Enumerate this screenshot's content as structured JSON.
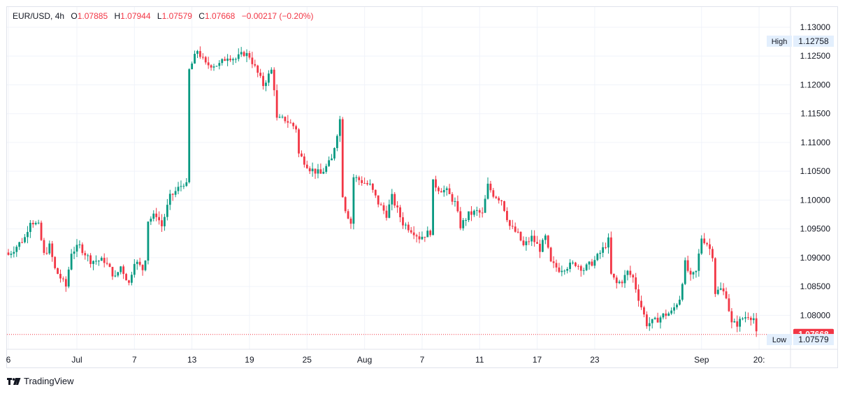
{
  "legend": {
    "symbol": "EUR/USD",
    "interval": "4h",
    "open_label": "O",
    "open": "1.07885",
    "high_label": "H",
    "high": "1.07944",
    "low_label": "L",
    "low": "1.07579",
    "close_label": "C",
    "close": "1.07668",
    "change": "−0.00217 (−0.20%)"
  },
  "brand": {
    "name": "TradingView"
  },
  "colors": {
    "up": "#089981",
    "down": "#f23645",
    "grid": "#f0f3fa",
    "axis_text": "#131722"
  },
  "chart_data": {
    "type": "candlestick",
    "title": "EUR/USD, 4h",
    "ylim": [
      1.072,
      1.1325
    ],
    "y_ticks": [
      1.13,
      1.125,
      1.12,
      1.115,
      1.11,
      1.105,
      1.1,
      1.095,
      1.09,
      1.085,
      1.08
    ],
    "y_tick_labels": [
      "1.13000",
      "1.12500",
      "1.12000",
      "1.11500",
      "1.11000",
      "1.10500",
      "1.10000",
      "1.09500",
      "1.09000",
      "1.08500",
      "1.08000"
    ],
    "x_tick_labels": [
      "6",
      "Jul",
      "7",
      "13",
      "19",
      "25",
      "Aug",
      "7",
      "11",
      "17",
      "23",
      "Sep",
      "20:"
    ],
    "markers": {
      "high": {
        "label": "High",
        "value": "1.12758"
      },
      "last": {
        "value": "1.07668"
      },
      "low": {
        "label": "Low",
        "value": "1.07579"
      }
    },
    "anchors": [
      [
        0,
        1.0905
      ],
      [
        6,
        1.0935
      ],
      [
        8,
        1.0965
      ],
      [
        11,
        1.0955
      ],
      [
        13,
        1.0905
      ],
      [
        15,
        1.092
      ],
      [
        17,
        1.088
      ],
      [
        21,
        1.085
      ],
      [
        23,
        1.091
      ],
      [
        26,
        1.092
      ],
      [
        30,
        1.0895
      ],
      [
        35,
        1.0895
      ],
      [
        39,
        1.0865
      ],
      [
        41,
        1.0885
      ],
      [
        44,
        1.0855
      ],
      [
        46,
        1.0895
      ],
      [
        49,
        1.088
      ],
      [
        50,
        1.09
      ],
      [
        51,
        1.0965
      ],
      [
        54,
        1.0975
      ],
      [
        56,
        1.0955
      ],
      [
        59,
        1.1005
      ],
      [
        61,
        1.1015
      ],
      [
        64,
        1.103
      ],
      [
        65,
        1.1025
      ],
      [
        66,
        1.1225
      ],
      [
        69,
        1.126
      ],
      [
        72,
        1.1235
      ],
      [
        77,
        1.1235
      ],
      [
        80,
        1.125
      ],
      [
        83,
        1.1245
      ],
      [
        86,
        1.1255
      ],
      [
        88,
        1.125
      ],
      [
        90,
        1.123
      ],
      [
        93,
        1.12
      ],
      [
        96,
        1.1225
      ],
      [
        97,
        1.1195
      ],
      [
        98,
        1.114
      ],
      [
        101,
        1.114
      ],
      [
        105,
        1.1125
      ],
      [
        106,
        1.108
      ],
      [
        110,
        1.1055
      ],
      [
        114,
        1.1045
      ],
      [
        118,
        1.107
      ],
      [
        121,
        1.114
      ],
      [
        122,
        1.101
      ],
      [
        123,
        1.0985
      ],
      [
        125,
        1.096
      ],
      [
        126,
        1.104
      ],
      [
        130,
        1.103
      ],
      [
        132,
        1.1025
      ],
      [
        135,
        1.0995
      ],
      [
        138,
        1.0975
      ],
      [
        140,
        1.1005
      ],
      [
        144,
        1.096
      ],
      [
        148,
        1.0945
      ],
      [
        150,
        1.0935
      ],
      [
        154,
        1.0945
      ],
      [
        155,
        1.103
      ],
      [
        157,
        1.102
      ],
      [
        160,
        1.1015
      ],
      [
        163,
        1.0995
      ],
      [
        165,
        1.0955
      ],
      [
        168,
        1.0975
      ],
      [
        171,
        1.098
      ],
      [
        173,
        1.0975
      ],
      [
        175,
        1.1025
      ],
      [
        177,
        1.101
      ],
      [
        180,
        1.1
      ],
      [
        183,
        1.0955
      ],
      [
        186,
        1.094
      ],
      [
        188,
        1.092
      ],
      [
        191,
        1.0935
      ],
      [
        194,
        1.0915
      ],
      [
        196,
        1.0935
      ],
      [
        198,
        1.089
      ],
      [
        201,
        1.088
      ],
      [
        204,
        1.0885
      ],
      [
        207,
        1.089
      ],
      [
        210,
        1.088
      ],
      [
        214,
        1.0895
      ],
      [
        217,
        1.0915
      ],
      [
        219,
        1.093
      ],
      [
        220,
        1.087
      ],
      [
        222,
        1.0855
      ],
      [
        224,
        1.086
      ],
      [
        226,
        1.0875
      ],
      [
        228,
        1.0865
      ],
      [
        230,
        1.083
      ],
      [
        233,
        1.0785
      ],
      [
        236,
        1.079
      ],
      [
        239,
        1.08
      ],
      [
        242,
        1.0805
      ],
      [
        245,
        1.083
      ],
      [
        247,
        1.089
      ],
      [
        249,
        1.0865
      ],
      [
        251,
        1.0875
      ],
      [
        253,
        1.0935
      ],
      [
        255,
        1.0925
      ],
      [
        257,
        1.0905
      ],
      [
        258,
        1.084
      ],
      [
        260,
        1.0845
      ],
      [
        262,
        1.0835
      ],
      [
        264,
        1.0785
      ],
      [
        266,
        1.0785
      ],
      [
        268,
        1.0795
      ],
      [
        270,
        1.08
      ],
      [
        272,
        1.0795
      ],
      [
        273,
        1.0767
      ]
    ],
    "bar_count": 274,
    "date_label_bars": [
      [
        0,
        "6"
      ],
      [
        25,
        "Jul"
      ],
      [
        46,
        "7"
      ],
      [
        67,
        "13"
      ],
      [
        88,
        "19"
      ],
      [
        109,
        "25"
      ],
      [
        130,
        "Aug"
      ],
      [
        151,
        "7"
      ],
      [
        172,
        "11"
      ],
      [
        193,
        "17"
      ],
      [
        214,
        "23"
      ],
      [
        253,
        "Sep"
      ],
      [
        274,
        "20:"
      ]
    ]
  }
}
